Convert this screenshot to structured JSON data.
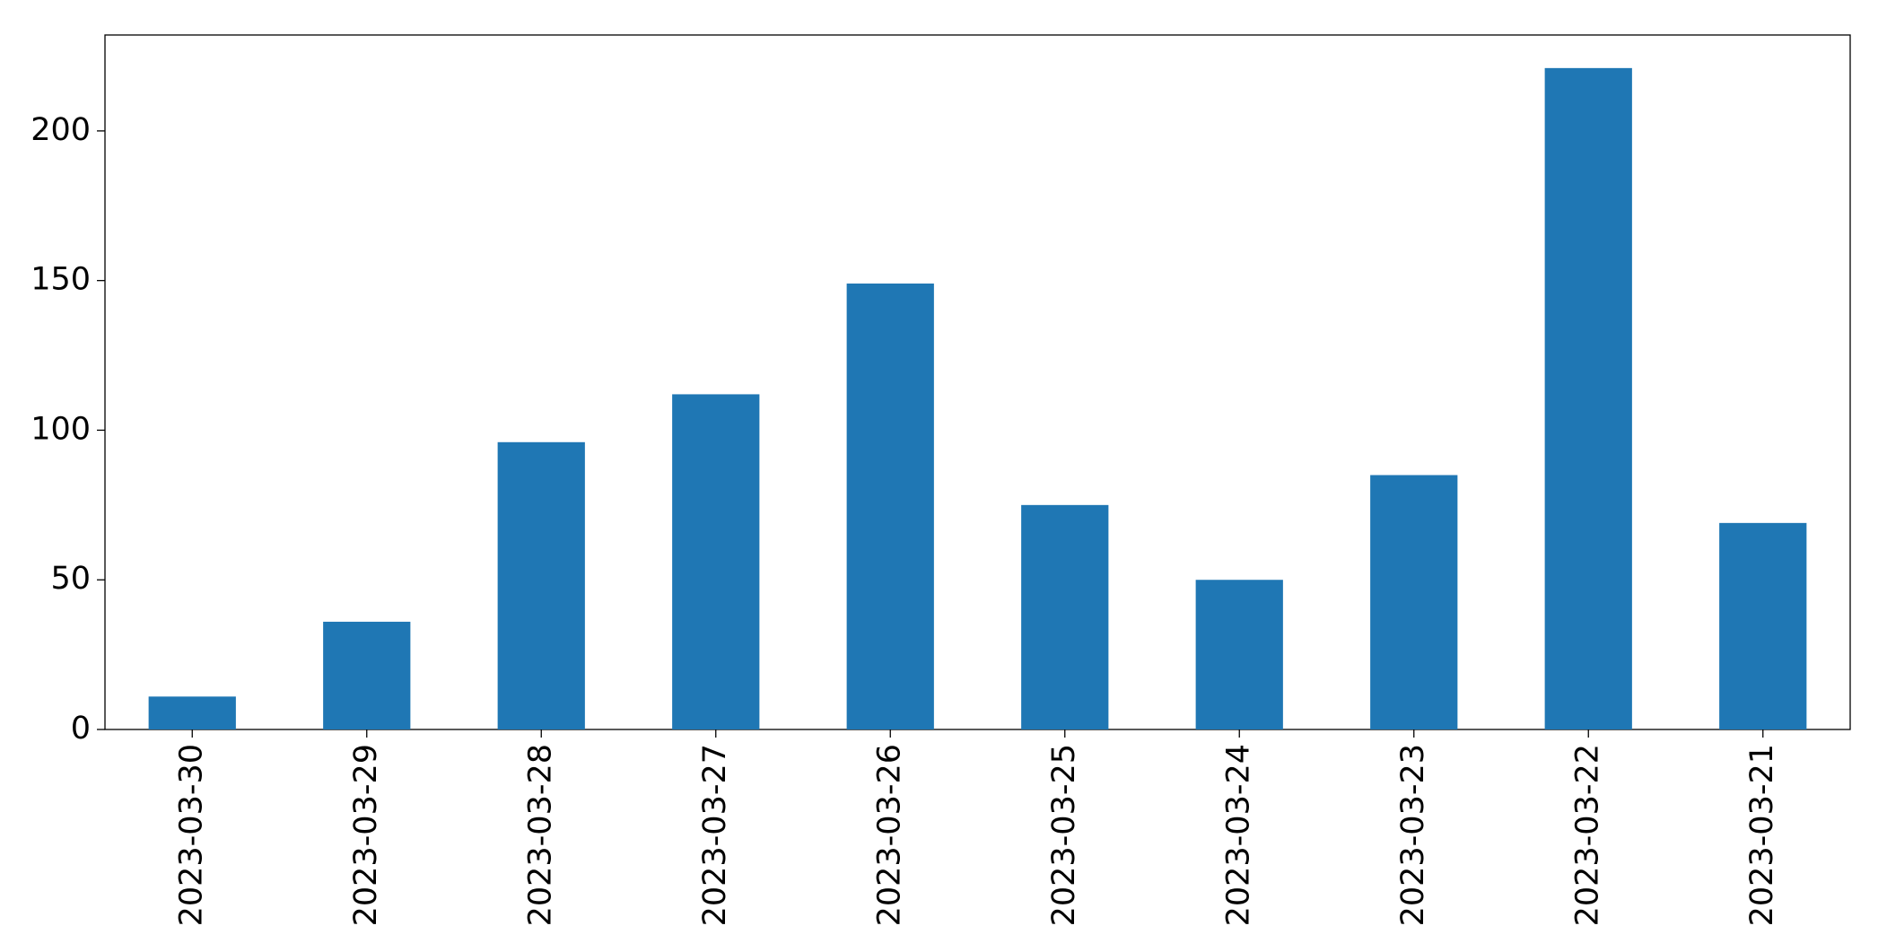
{
  "chart_data": {
    "type": "bar",
    "categories": [
      "2023-03-30",
      "2023-03-29",
      "2023-03-28",
      "2023-03-27",
      "2023-03-26",
      "2023-03-25",
      "2023-03-24",
      "2023-03-23",
      "2023-03-22",
      "2023-03-21"
    ],
    "values": [
      11,
      36,
      96,
      112,
      149,
      75,
      50,
      85,
      221,
      69
    ],
    "color": "#1f77b4",
    "ylim": [
      0,
      232.05
    ],
    "yticks": [
      0,
      50,
      100,
      150,
      200
    ],
    "grid": false
  }
}
